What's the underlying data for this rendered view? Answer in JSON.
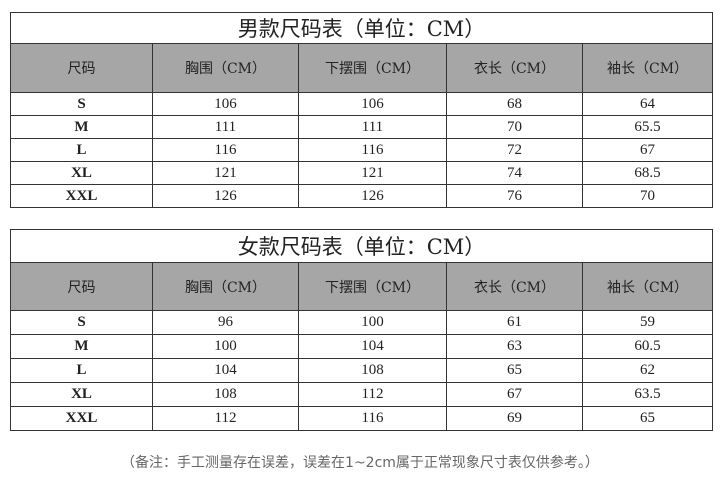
{
  "men": {
    "title": "男款尺码表（单位：CM）",
    "headers": [
      "尺码",
      "胸围（CM）",
      "下摆围（CM）",
      "衣长（CM）",
      "袖长（CM）"
    ],
    "rows": [
      [
        "S",
        "106",
        "106",
        "68",
        "64"
      ],
      [
        "M",
        "111",
        "111",
        "70",
        "65.5"
      ],
      [
        "L",
        "116",
        "116",
        "72",
        "67"
      ],
      [
        "XL",
        "121",
        "121",
        "74",
        "68.5"
      ],
      [
        "XXL",
        "126",
        "126",
        "76",
        "70"
      ]
    ]
  },
  "women": {
    "title": "女款尺码表（单位：CM）",
    "headers": [
      "尺码",
      "胸围（CM）",
      "下摆围（CM）",
      "衣长（CM）",
      "袖长（CM）"
    ],
    "rows": [
      [
        "S",
        "96",
        "100",
        "61",
        "59"
      ],
      [
        "M",
        "100",
        "104",
        "63",
        "60.5"
      ],
      [
        "L",
        "104",
        "108",
        "65",
        "62"
      ],
      [
        "XL",
        "108",
        "112",
        "67",
        "63.5"
      ],
      [
        "XXL",
        "112",
        "116",
        "69",
        "65"
      ]
    ]
  },
  "note": "（备注：手工测量存在误差，误差在1~2cm属于正常现象尺寸表仅供参考。）",
  "colors": {
    "header_bg": "#a6a6a6",
    "border": "#333333"
  }
}
